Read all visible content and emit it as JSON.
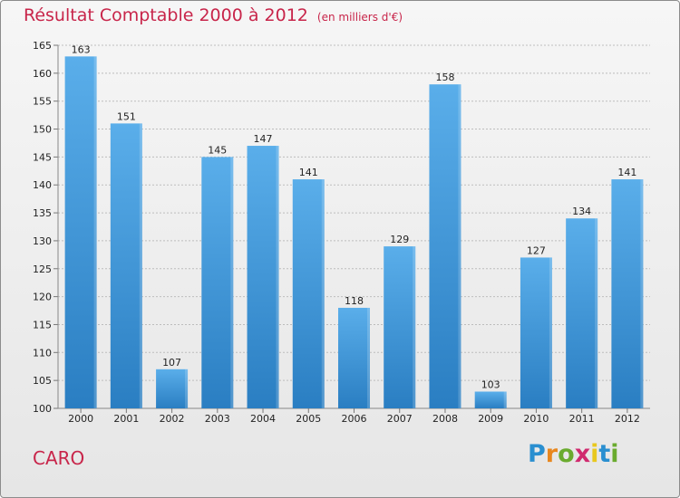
{
  "chart_data": {
    "type": "bar",
    "title": "Résultat Comptable 2000 à 2012",
    "subtitle": "(en milliers d'€)",
    "categories": [
      "2000",
      "2001",
      "2002",
      "2003",
      "2004",
      "2005",
      "2006",
      "2007",
      "2008",
      "2009",
      "2010",
      "2011",
      "2012"
    ],
    "values": [
      163,
      151,
      107,
      145,
      147,
      141,
      118,
      129,
      158,
      103,
      127,
      134,
      141
    ],
    "ylim": [
      100,
      165
    ],
    "yticks": [
      100,
      105,
      110,
      115,
      120,
      125,
      130,
      135,
      140,
      145,
      150,
      155,
      160,
      165
    ],
    "xlabel": "",
    "ylabel": "",
    "grid": true,
    "bar_color_top": "#5aaeea",
    "bar_color_bottom": "#2a7ec2"
  },
  "footer": {
    "commune": "CARO",
    "logo_letters": [
      "P",
      "r",
      "o",
      "x",
      "i",
      "t",
      "i"
    ],
    "logo_colors": [
      "#2a8fd0",
      "#e8871e",
      "#6aab2e",
      "#d02a6e",
      "#e8c81e",
      "#2a8fd0",
      "#6aab2e"
    ]
  },
  "colors": {
    "title": "#c8254a",
    "grid": "#bdbdbd",
    "axis_text": "#222222"
  }
}
